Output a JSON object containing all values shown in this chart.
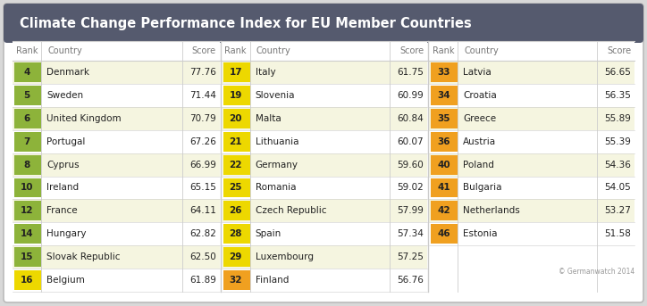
{
  "title": "Climate Change Performance Index for EU Member Countries",
  "title_bg": "#555a6e",
  "title_color": "#ffffff",
  "outer_bg": "#d8d8d8",
  "card_bg": "#ffffff",
  "header_color": "#777777",
  "col1": [
    {
      "rank": "4",
      "country": "Denmark",
      "score": "77.76",
      "rank_color": "#8db33a"
    },
    {
      "rank": "5",
      "country": "Sweden",
      "score": "71.44",
      "rank_color": "#8db33a"
    },
    {
      "rank": "6",
      "country": "United Kingdom",
      "score": "70.79",
      "rank_color": "#8db33a"
    },
    {
      "rank": "7",
      "country": "Portugal",
      "score": "67.26",
      "rank_color": "#8db33a"
    },
    {
      "rank": "8",
      "country": "Cyprus",
      "score": "66.99",
      "rank_color": "#8db33a"
    },
    {
      "rank": "10",
      "country": "Ireland",
      "score": "65.15",
      "rank_color": "#8db33a"
    },
    {
      "rank": "12",
      "country": "France",
      "score": "64.11",
      "rank_color": "#8db33a"
    },
    {
      "rank": "14",
      "country": "Hungary",
      "score": "62.82",
      "rank_color": "#8db33a"
    },
    {
      "rank": "15",
      "country": "Slovak Republic",
      "score": "62.50",
      "rank_color": "#8db33a"
    },
    {
      "rank": "16",
      "country": "Belgium",
      "score": "61.89",
      "rank_color": "#edd800"
    }
  ],
  "col2": [
    {
      "rank": "17",
      "country": "Italy",
      "score": "61.75",
      "rank_color": "#edd800"
    },
    {
      "rank": "19",
      "country": "Slovenia",
      "score": "60.99",
      "rank_color": "#edd800"
    },
    {
      "rank": "20",
      "country": "Malta",
      "score": "60.84",
      "rank_color": "#edd800"
    },
    {
      "rank": "21",
      "country": "Lithuania",
      "score": "60.07",
      "rank_color": "#edd800"
    },
    {
      "rank": "22",
      "country": "Germany",
      "score": "59.60",
      "rank_color": "#edd800"
    },
    {
      "rank": "25",
      "country": "Romania",
      "score": "59.02",
      "rank_color": "#edd800"
    },
    {
      "rank": "26",
      "country": "Czech Republic",
      "score": "57.99",
      "rank_color": "#edd800"
    },
    {
      "rank": "28",
      "country": "Spain",
      "score": "57.34",
      "rank_color": "#edd800"
    },
    {
      "rank": "29",
      "country": "Luxembourg",
      "score": "57.25",
      "rank_color": "#edd800"
    },
    {
      "rank": "32",
      "country": "Finland",
      "score": "56.76",
      "rank_color": "#f0a020"
    }
  ],
  "col3": [
    {
      "rank": "33",
      "country": "Latvia",
      "score": "56.65",
      "rank_color": "#f0a020"
    },
    {
      "rank": "34",
      "country": "Croatia",
      "score": "56.35",
      "rank_color": "#f0a020"
    },
    {
      "rank": "35",
      "country": "Greece",
      "score": "55.89",
      "rank_color": "#f0a020"
    },
    {
      "rank": "36",
      "country": "Austria",
      "score": "55.39",
      "rank_color": "#f0a020"
    },
    {
      "rank": "40",
      "country": "Poland",
      "score": "54.36",
      "rank_color": "#f0a020"
    },
    {
      "rank": "41",
      "country": "Bulgaria",
      "score": "54.05",
      "rank_color": "#f0a020"
    },
    {
      "rank": "42",
      "country": "Netherlands",
      "score": "53.27",
      "rank_color": "#f0a020"
    },
    {
      "rank": "46",
      "country": "Estonia",
      "score": "51.58",
      "rank_color": "#f0a020"
    }
  ],
  "row_bg_odd": "#f5f5e0",
  "row_bg_even": "#ffffff",
  "credit": "© Germanwatch 2014",
  "border_color": "#bbbbbb",
  "divider_color": "#cccccc"
}
